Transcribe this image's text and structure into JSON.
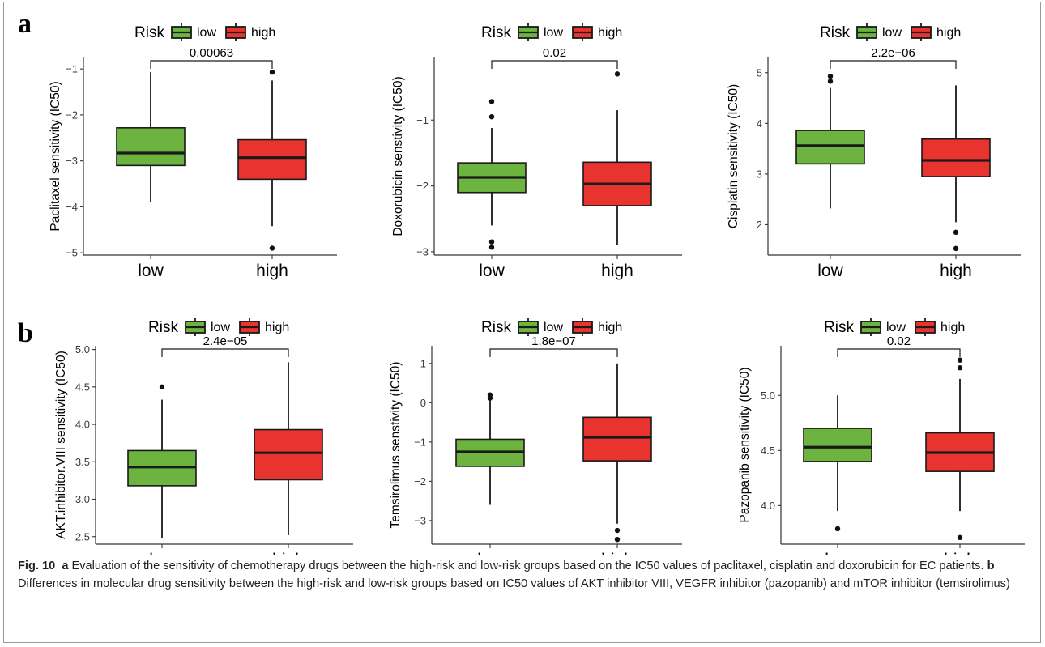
{
  "panels": [
    {
      "letter": "a"
    },
    {
      "letter": "b"
    }
  ],
  "legend": {
    "title": "Risk",
    "items": [
      {
        "label": "low",
        "color": "#6db33f"
      },
      {
        "label": "high",
        "color": "#e8332e"
      }
    ]
  },
  "chart_data": [
    {
      "type": "box",
      "ylabel": "Paclitaxel sensitivity (IC50)",
      "categories": [
        "low",
        "high"
      ],
      "ylim": [
        -5.05,
        -0.75
      ],
      "yticks": [
        -5,
        -4,
        -3,
        -2,
        -1
      ],
      "yticklabels": [
        "−5",
        "−4",
        "−3",
        "−2",
        "−1"
      ],
      "boxes": [
        {
          "group": "low",
          "q1": -3.1,
          "median": -2.83,
          "q3": -2.28,
          "whisker_low": -3.9,
          "whisker_high": -1.07,
          "outliers": []
        },
        {
          "group": "high",
          "q1": -3.4,
          "median": -2.93,
          "q3": -2.54,
          "whisker_low": -4.42,
          "whisker_high": -1.25,
          "outliers": [
            -1.07,
            -4.9
          ]
        }
      ],
      "pvalue": "0.00063"
    },
    {
      "type": "box",
      "ylabel": "Doxorubicin senstivity (IC50)",
      "categories": [
        "low",
        "high"
      ],
      "ylim": [
        -3.05,
        -0.05
      ],
      "yticks": [
        -3,
        -2,
        -1
      ],
      "yticklabels": [
        "−3",
        "−2",
        "−1"
      ],
      "boxes": [
        {
          "group": "low",
          "q1": -2.1,
          "median": -1.87,
          "q3": -1.65,
          "whisker_low": -2.6,
          "whisker_high": -1.12,
          "outliers": [
            -0.72,
            -0.95,
            -2.85,
            -2.93
          ]
        },
        {
          "group": "high",
          "q1": -2.3,
          "median": -1.97,
          "q3": -1.64,
          "whisker_low": -2.9,
          "whisker_high": -0.85,
          "outliers": [
            -0.3
          ]
        }
      ],
      "pvalue": "0.02"
    },
    {
      "type": "box",
      "ylabel": "Cisplatin sensitivity (IC50)",
      "categories": [
        "low",
        "high"
      ],
      "ylim": [
        1.4,
        5.3
      ],
      "yticks": [
        2,
        3,
        4,
        5
      ],
      "yticklabels": [
        "2",
        "3",
        "4",
        "5"
      ],
      "boxes": [
        {
          "group": "low",
          "q1": 3.2,
          "median": 3.56,
          "q3": 3.86,
          "whisker_low": 2.32,
          "whisker_high": 4.7,
          "outliers": [
            4.93,
            4.83
          ]
        },
        {
          "group": "high",
          "q1": 2.95,
          "median": 3.27,
          "q3": 3.69,
          "whisker_low": 2.05,
          "whisker_high": 4.75,
          "outliers": [
            1.85,
            1.53
          ]
        }
      ],
      "pvalue": "2.2e−06"
    },
    {
      "type": "box",
      "ylabel": "AKT.inhibitor.VIII sensitivity (IC50)",
      "categories": [
        "low",
        "high"
      ],
      "ylim": [
        2.4,
        5.05
      ],
      "yticks": [
        2.5,
        3.0,
        3.5,
        4.0,
        4.5,
        5.0
      ],
      "yticklabels": [
        "2.5",
        "3.0",
        "3.5",
        "4.0",
        "4.5",
        "5.0"
      ],
      "boxes": [
        {
          "group": "low",
          "q1": 3.18,
          "median": 3.43,
          "q3": 3.65,
          "whisker_low": 2.48,
          "whisker_high": 4.33,
          "outliers": [
            4.5
          ]
        },
        {
          "group": "high",
          "q1": 3.26,
          "median": 3.62,
          "q3": 3.93,
          "whisker_low": 2.52,
          "whisker_high": 4.83,
          "outliers": []
        }
      ],
      "pvalue": "2.4e−05"
    },
    {
      "type": "box",
      "ylabel": "Temsirolimus senstivity (IC50)",
      "categories": [
        "low",
        "high"
      ],
      "ylim": [
        -3.6,
        1.45
      ],
      "yticks": [
        -3,
        -2,
        -1,
        0,
        1
      ],
      "yticklabels": [
        "−3",
        "−2",
        "−1",
        "0",
        "1"
      ],
      "boxes": [
        {
          "group": "low",
          "q1": -1.62,
          "median": -1.25,
          "q3": -0.93,
          "whisker_low": -2.6,
          "whisker_high": 0.08,
          "outliers": [
            0.2,
            0.12
          ]
        },
        {
          "group": "high",
          "q1": -1.48,
          "median": -0.88,
          "q3": -0.37,
          "whisker_low": -3.08,
          "whisker_high": 1.0,
          "outliers": [
            -3.25,
            -3.48
          ]
        }
      ],
      "pvalue": "1.8e−07"
    },
    {
      "type": "box",
      "ylabel": "Pazopanib sensitivity (IC50)",
      "categories": [
        "low",
        "high"
      ],
      "ylim": [
        3.65,
        5.45
      ],
      "yticks": [
        4.0,
        4.5,
        5.0
      ],
      "yticklabels": [
        "4.0",
        "4.5",
        "5.0"
      ],
      "boxes": [
        {
          "group": "low",
          "q1": 4.4,
          "median": 4.53,
          "q3": 4.7,
          "whisker_low": 3.95,
          "whisker_high": 5.0,
          "outliers": [
            3.79
          ]
        },
        {
          "group": "high",
          "q1": 4.31,
          "median": 4.48,
          "q3": 4.66,
          "whisker_low": 3.95,
          "whisker_high": 5.15,
          "outliers": [
            5.32,
            5.25,
            3.71
          ]
        }
      ],
      "pvalue": "0.02"
    }
  ],
  "caption": {
    "fig_label": "Fig. 10",
    "a_letter": "a",
    "a_text": "Evaluation of the sensitivity of chemotherapy drugs between the high-risk and low-risk groups based on the IC50 values of paclitaxel, cisplatin and doxorubicin for EC patients.",
    "b_letter": "b",
    "b_text": "Differences in molecular drug sensitivity between the high-risk and low-risk groups based on IC50 values of AKT inhibitor VIII, VEGFR inhibitor (pazopanib) and mTOR inhibitor (temsirolimus)"
  }
}
